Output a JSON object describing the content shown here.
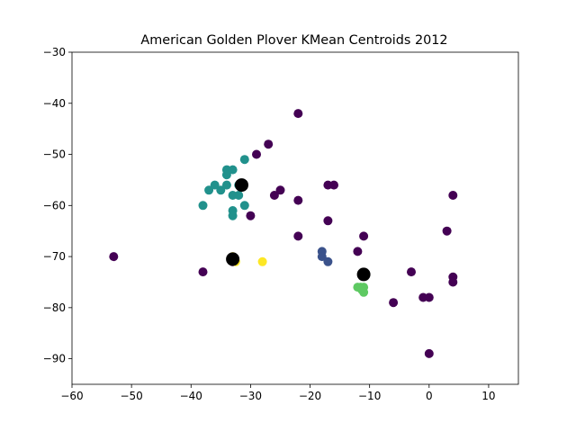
{
  "chart_data": {
    "type": "scatter",
    "title": "American Golden Plover KMean Centroids 2012",
    "xlabel": "",
    "ylabel": "",
    "xlim": [
      -60,
      15
    ],
    "ylim": [
      -95,
      -30
    ],
    "xticks": [
      -60,
      -50,
      -40,
      -30,
      -20,
      -10,
      0,
      10
    ],
    "yticks": [
      -30,
      -40,
      -50,
      -60,
      -70,
      -80,
      -90
    ],
    "xtick_labels": [
      "−60",
      "−50",
      "−40",
      "−30",
      "−20",
      "−10",
      "0",
      "10"
    ],
    "ytick_labels": [
      "−30",
      "−40",
      "−50",
      "−60",
      "−70",
      "−80",
      "−90"
    ],
    "grid": false,
    "colors": {
      "purple": "#440154",
      "blue": "#3b528b",
      "teal": "#21918c",
      "green": "#5ec962",
      "yellow": "#fde725",
      "centroid": "#000000"
    },
    "series": [
      {
        "color": "purple",
        "points": [
          [
            -53,
            -70
          ],
          [
            -38,
            -73
          ],
          [
            -33,
            -71
          ],
          [
            -30,
            -62
          ],
          [
            -29,
            -50
          ],
          [
            -27,
            -48
          ],
          [
            -26,
            -58
          ],
          [
            -25,
            -57
          ],
          [
            -22,
            -42
          ],
          [
            -22,
            -59
          ],
          [
            -22,
            -66
          ],
          [
            -17,
            -56
          ],
          [
            -16,
            -56
          ],
          [
            -17,
            -63
          ],
          [
            -12,
            -69
          ],
          [
            -11,
            -66
          ],
          [
            -6,
            -79
          ],
          [
            -3,
            -73
          ],
          [
            -1,
            -78
          ],
          [
            0,
            -78
          ],
          [
            0,
            -89
          ],
          [
            3,
            -65
          ],
          [
            4,
            -58
          ],
          [
            4,
            -74
          ],
          [
            4,
            -75
          ]
        ]
      },
      {
        "color": "blue",
        "points": [
          [
            -18,
            -69
          ],
          [
            -18,
            -70
          ],
          [
            -17,
            -71
          ]
        ]
      },
      {
        "color": "teal",
        "points": [
          [
            -38,
            -60
          ],
          [
            -37,
            -57
          ],
          [
            -36,
            -56
          ],
          [
            -35,
            -57
          ],
          [
            -34,
            -53
          ],
          [
            -34,
            -54
          ],
          [
            -34,
            -56
          ],
          [
            -33,
            -53
          ],
          [
            -33,
            -58
          ],
          [
            -33,
            -61
          ],
          [
            -33,
            -62
          ],
          [
            -32,
            -58
          ],
          [
            -31,
            -51
          ],
          [
            -31,
            -60
          ],
          [
            -32,
            -56
          ]
        ]
      },
      {
        "color": "green",
        "points": [
          [
            -12,
            -76
          ],
          [
            -11.5,
            -76
          ],
          [
            -11,
            -76
          ],
          [
            -11,
            -77
          ],
          [
            -11.3,
            -76.5
          ]
        ]
      },
      {
        "color": "yellow",
        "points": [
          [
            -33,
            -70
          ],
          [
            -32.5,
            -71
          ],
          [
            -28,
            -71
          ]
        ]
      }
    ],
    "centroids": [
      [
        -31.5,
        -56
      ],
      [
        -33,
        -70.5
      ],
      [
        -11,
        -73.5
      ]
    ]
  }
}
